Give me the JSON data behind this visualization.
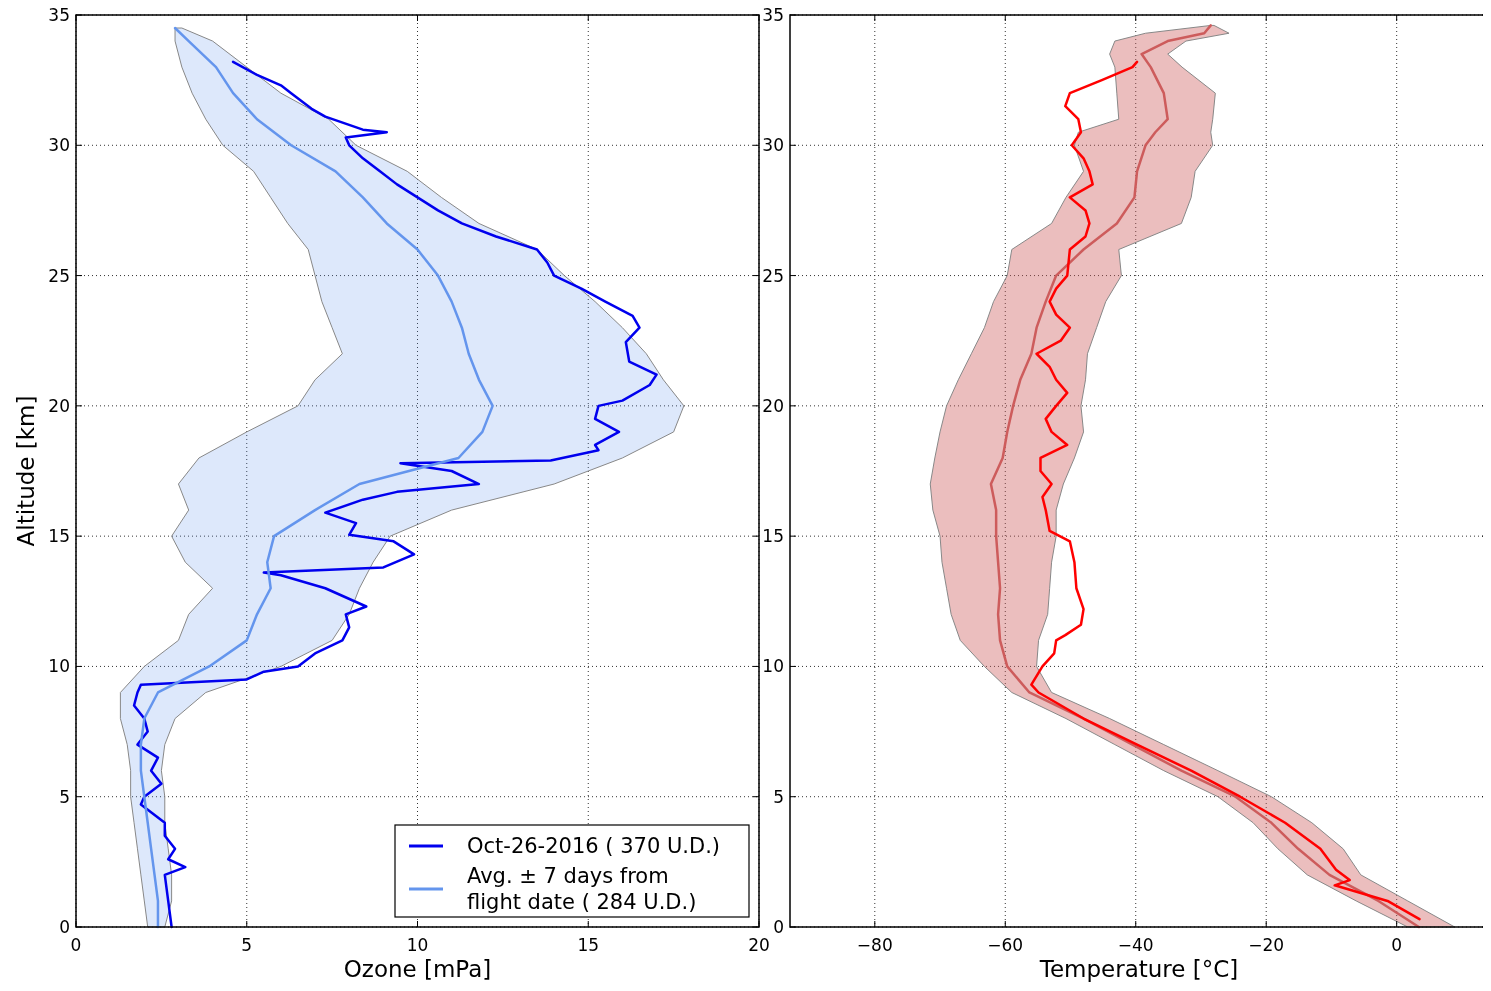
{
  "chart_data": [
    {
      "type": "line",
      "orientation": "horizontal",
      "xlabel": "Ozone [mPa]",
      "ylabel": "Altitude [km]",
      "xlim": [
        0,
        20
      ],
      "xticks": [
        0,
        5,
        10,
        15,
        20
      ],
      "ylim": [
        0,
        35
      ],
      "yticks": [
        0,
        5,
        10,
        15,
        20,
        25,
        30,
        35
      ],
      "grid": true,
      "legend": "bottom right",
      "series": [
        {
          "name": "Oct-26-2016 ( 370 U.D.)",
          "color": "#0000ee",
          "x": [
            0,
            1,
            2,
            2.3,
            2.6,
            3,
            3.5,
            4,
            4.7,
            5,
            5.5,
            6,
            6.5,
            7,
            7.5,
            8,
            8.5,
            9,
            9.3,
            9.5,
            9.8,
            10,
            10.5,
            11,
            11.5,
            12,
            12.3,
            13,
            13.5,
            13.6,
            13.8,
            14.3,
            14.8,
            15.05,
            15.5,
            15.9,
            16.4,
            16.7,
            17,
            17.5,
            17.8,
            17.9,
            18.3,
            18.5,
            19,
            19.5,
            20,
            20.2,
            20.8,
            21.2,
            21.7,
            22.45,
            23,
            23.45,
            24,
            24.5,
            25,
            25.5,
            26,
            26.5,
            27,
            27.5,
            28,
            28.5,
            29,
            29.5,
            30,
            30.3,
            30.5,
            30.6,
            31.1,
            31.4,
            32,
            32.3,
            32.7,
            33.2
          ],
          "values": [
            2.8,
            2.7,
            2.6,
            3.2,
            2.7,
            2.9,
            2.6,
            2.6,
            1.9,
            2.0,
            2.5,
            2.2,
            2.4,
            1.8,
            2.1,
            2.0,
            1.7,
            1.8,
            1.9,
            5.0,
            5.5,
            6.5,
            7.0,
            7.8,
            8.0,
            7.9,
            8.5,
            7.3,
            6.0,
            5.5,
            9.0,
            9.9,
            9.3,
            8.0,
            8.2,
            7.3,
            8.4,
            9.4,
            11.8,
            11.0,
            9.5,
            13.9,
            15.3,
            15.2,
            15.9,
            15.2,
            15.3,
            16.0,
            16.8,
            17.0,
            16.2,
            16.1,
            16.5,
            16.3,
            15.5,
            14.8,
            14.0,
            13.8,
            13.5,
            12.3,
            11.3,
            10.6,
            10.0,
            9.4,
            8.9,
            8.4,
            8.0,
            7.9,
            9.1,
            8.4,
            7.3,
            6.9,
            6.3,
            6.0,
            5.3,
            4.6
          ]
        },
        {
          "name": "Avg. ± 7 days from\nflight date ( 284 U.D.)",
          "color": "#6495ed",
          "x": [
            0,
            1,
            2,
            3,
            4,
            5,
            6,
            7,
            8,
            9,
            10,
            11,
            12,
            13,
            14,
            15,
            16,
            17,
            18,
            19,
            20,
            21,
            22,
            23,
            24,
            25,
            26,
            27,
            28,
            29,
            30,
            31,
            32,
            33,
            34,
            34.5
          ],
          "values": [
            2.4,
            2.4,
            2.3,
            2.2,
            2.1,
            2.0,
            1.9,
            1.9,
            2.0,
            2.4,
            3.9,
            5.0,
            5.3,
            5.7,
            5.6,
            5.8,
            7.0,
            8.3,
            11.2,
            11.9,
            12.2,
            11.8,
            11.5,
            11.3,
            11.0,
            10.6,
            10.0,
            9.1,
            8.4,
            7.6,
            6.3,
            5.3,
            4.6,
            4.1,
            3.3,
            2.9
          ],
          "lower": [
            2.1,
            2.0,
            1.9,
            1.8,
            1.7,
            1.6,
            1.6,
            1.5,
            1.3,
            1.3,
            2.0,
            3.0,
            3.3,
            4.0,
            3.2,
            2.8,
            3.3,
            3.0,
            3.6,
            5.0,
            6.5,
            7.0,
            7.8,
            7.5,
            7.2,
            7.0,
            6.8,
            6.2,
            5.7,
            5.2,
            4.3,
            3.8,
            3.4,
            3.1,
            2.9,
            2.9
          ],
          "upper": [
            2.6,
            2.8,
            2.8,
            2.7,
            2.6,
            2.6,
            2.5,
            2.6,
            2.9,
            3.8,
            6.0,
            7.5,
            8.0,
            8.3,
            8.7,
            9.2,
            11.0,
            14.0,
            16.0,
            17.5,
            17.8,
            17.2,
            16.7,
            16.0,
            15.2,
            14.3,
            13.5,
            11.8,
            10.7,
            9.7,
            8.2,
            7.4,
            6.0,
            5.0,
            4.0,
            3.1
          ]
        }
      ]
    },
    {
      "type": "line",
      "orientation": "horizontal",
      "xlabel": "Temperature [°C]",
      "xlim": [
        -93,
        14
      ],
      "xticks": [
        -80,
        -60,
        -40,
        -20,
        0
      ],
      "ylim": [
        0,
        35
      ],
      "yticks": [
        0,
        5,
        10,
        15,
        20,
        25,
        30,
        35
      ],
      "grid": true,
      "series": [
        {
          "color": "#cd5c5c",
          "x": [
            0,
            1,
            2,
            3,
            4,
            5,
            6,
            7,
            8,
            9,
            10,
            11,
            12,
            13,
            14,
            15,
            16,
            17,
            18,
            19,
            20,
            21,
            22,
            23,
            24,
            25,
            26,
            27,
            28,
            29,
            30,
            30.5,
            31,
            32,
            33,
            33.5,
            34,
            34.3,
            34.6
          ],
          "values": [
            3.4,
            -2.8,
            -10.3,
            -15.1,
            -19.2,
            -24.7,
            -33,
            -40.5,
            -48,
            -56.3,
            -59.7,
            -60.8,
            -61.1,
            -60.8,
            -61.1,
            -61.4,
            -61.4,
            -62.2,
            -60.4,
            -59.7,
            -58.8,
            -57.7,
            -56,
            -55.2,
            -53.8,
            -52.2,
            -48,
            -42.9,
            -40.2,
            -39.8,
            -38.5,
            -37,
            -35.1,
            -35.7,
            -37.7,
            -39.1,
            -35.1,
            -29.5,
            -28.5
          ],
          "lower": [
            1.7,
            -6.2,
            -13.7,
            -18.2,
            -22,
            -27.4,
            -35.7,
            -43.2,
            -50.7,
            -59,
            -63.2,
            -66.9,
            -68.3,
            -69,
            -69.7,
            -70,
            -71.1,
            -71.5,
            -70.8,
            -70,
            -69,
            -67.2,
            -65.2,
            -63.2,
            -61.8,
            -59.7,
            -59,
            -52.9,
            -50.7,
            -48,
            -49.4,
            -48.8,
            -42.6,
            -42.9,
            -43.2,
            -44,
            -43.2,
            -38.5,
            -28.5
          ],
          "upper": [
            8.9,
            1.7,
            -5.5,
            -8.2,
            -13,
            -19.2,
            -27.4,
            -35.7,
            -44,
            -52.9,
            -55.2,
            -54.9,
            -53.5,
            -53.2,
            -52.9,
            -52.2,
            -52.2,
            -51.1,
            -49.4,
            -48,
            -48.4,
            -47.7,
            -47.4,
            -46,
            -44.6,
            -42.2,
            -42.6,
            -33,
            -31.5,
            -30.9,
            -28.2,
            -28.5,
            -28.2,
            -27.8,
            -32.9,
            -35.1,
            -32.3,
            -25.7,
            -28
          ]
        },
        {
          "color": "#ff0000",
          "x": [
            0.3,
            1,
            1.6,
            1.8,
            2.2,
            3,
            4,
            5,
            6,
            7,
            8,
            9,
            9.3,
            10,
            10.5,
            11,
            11.2,
            11.6,
            12.2,
            13,
            14,
            14.8,
            15.2,
            16,
            16.5,
            17,
            17.5,
            18,
            18.5,
            19,
            19.5,
            20,
            20.5,
            21,
            21.5,
            22,
            22.5,
            23,
            23.5,
            24,
            24.5,
            25,
            26,
            26.5,
            27,
            27.5,
            28,
            28.5,
            29,
            29.5,
            30,
            30.5,
            31,
            31.5,
            32,
            32.5,
            33,
            33.2
          ],
          "values": [
            3.5,
            -1.4,
            -9.5,
            -7.2,
            -9.3,
            -11.7,
            -17.1,
            -24,
            -31.5,
            -39.8,
            -48,
            -54.9,
            -56,
            -54.3,
            -52.5,
            -52.2,
            -50.8,
            -48.4,
            -48,
            -49.1,
            -49.4,
            -50.1,
            -53.2,
            -53.8,
            -54.3,
            -52.9,
            -54.6,
            -54.6,
            -50.5,
            -52.9,
            -53.8,
            -52.2,
            -50.5,
            -52.2,
            -53.2,
            -55.2,
            -51.5,
            -50.1,
            -52.2,
            -53.2,
            -52.2,
            -50.5,
            -50.1,
            -47.7,
            -47.1,
            -47.7,
            -50.1,
            -46.6,
            -47.1,
            -48,
            -49.8,
            -48.4,
            -48.8,
            -50.8,
            -50.1,
            -45.2,
            -40.5,
            -39.8
          ]
        }
      ]
    }
  ]
}
